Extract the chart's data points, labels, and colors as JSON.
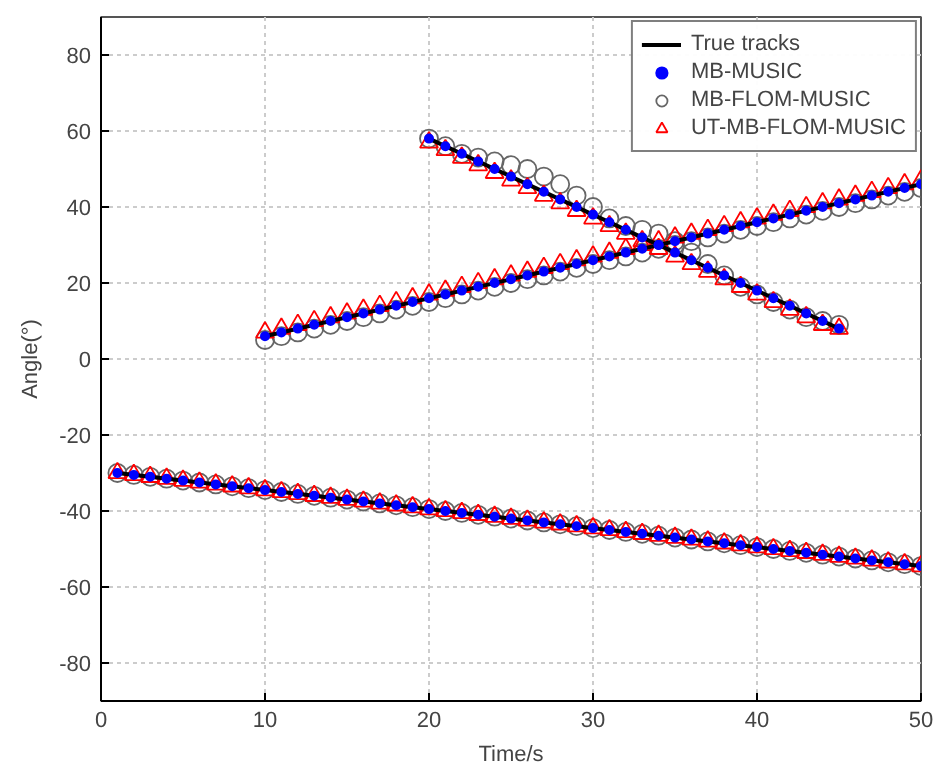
{
  "chart_data": {
    "type": "scatter",
    "xlabel": "Time/s",
    "ylabel": "Angle(°)",
    "xlim": [
      0,
      50
    ],
    "ylim": [
      -90,
      90
    ],
    "xticks": [
      0,
      10,
      20,
      30,
      40,
      50
    ],
    "yticks": [
      -80,
      -60,
      -40,
      -20,
      0,
      20,
      40,
      60,
      80
    ],
    "grid": true,
    "legend": "top right",
    "series": [
      {
        "name": "True tracks",
        "type": "line",
        "color": "#000000",
        "x": [
          1,
          50,
          null,
          10,
          50,
          null,
          20,
          45
        ],
        "values": [
          -30,
          -54.5,
          null,
          6,
          46,
          null,
          58,
          8
        ]
      },
      {
        "name": "MB-MUSIC",
        "color": "#0000ff",
        "marker": "circle",
        "x": [
          1,
          2,
          3,
          4,
          5,
          6,
          7,
          8,
          9,
          10,
          11,
          12,
          13,
          14,
          15,
          16,
          17,
          18,
          19,
          20,
          21,
          22,
          23,
          24,
          25,
          26,
          27,
          28,
          29,
          30,
          31,
          32,
          33,
          34,
          35,
          36,
          37,
          38,
          39,
          40,
          41,
          42,
          43,
          44,
          45,
          46,
          47,
          48,
          49,
          50,
          10,
          11,
          12,
          13,
          14,
          15,
          16,
          17,
          18,
          19,
          20,
          21,
          22,
          23,
          24,
          25,
          26,
          27,
          28,
          29,
          30,
          31,
          32,
          33,
          34,
          35,
          36,
          37,
          38,
          39,
          40,
          41,
          42,
          43,
          44,
          45,
          46,
          47,
          48,
          49,
          50,
          20,
          21,
          22,
          23,
          24,
          25,
          26,
          27,
          28,
          29,
          30,
          31,
          32,
          33,
          34,
          35,
          36,
          37,
          38,
          39,
          40,
          41,
          42,
          43,
          44,
          45
        ],
        "values": [
          -30,
          -30.5,
          -31,
          -31.5,
          -32,
          -32.5,
          -33,
          -33.5,
          -34,
          -34.5,
          -35,
          -35.5,
          -36,
          -36.5,
          -37,
          -37.5,
          -38,
          -38.5,
          -39,
          -39.5,
          -40,
          -40.5,
          -41,
          -41.5,
          -42,
          -42.5,
          -43,
          -43.5,
          -44,
          -44.5,
          -45,
          -45.5,
          -46,
          -46.5,
          -47,
          -47.5,
          -48,
          -48.5,
          -49,
          -49.5,
          -50,
          -50.5,
          -51,
          -51.5,
          -52,
          -52.5,
          -53,
          -53.5,
          -54,
          -54.5,
          6,
          7,
          8,
          9,
          10,
          11,
          12,
          13,
          14,
          15,
          16,
          17,
          18,
          19,
          20,
          21,
          22,
          23,
          24,
          25,
          26,
          27,
          28,
          29,
          30,
          31,
          32,
          33,
          34,
          35,
          36,
          37,
          38,
          39,
          40,
          41,
          42,
          43,
          44,
          45,
          46,
          58,
          56,
          54,
          52,
          50,
          48,
          46,
          44,
          42,
          40,
          38,
          36,
          34,
          32,
          30,
          28,
          26,
          24,
          22,
          20,
          18,
          16,
          14,
          12,
          10,
          8
        ]
      },
      {
        "name": "MB-FLOM-MUSIC",
        "color": "#666666",
        "marker": "circle",
        "x": [
          1,
          2,
          3,
          4,
          5,
          6,
          7,
          8,
          9,
          10,
          11,
          12,
          13,
          14,
          15,
          16,
          17,
          18,
          19,
          20,
          21,
          22,
          23,
          24,
          25,
          26,
          27,
          28,
          29,
          30,
          31,
          32,
          33,
          34,
          35,
          36,
          37,
          38,
          39,
          40,
          41,
          42,
          43,
          44,
          45,
          46,
          47,
          48,
          49,
          50,
          10,
          11,
          12,
          13,
          14,
          15,
          16,
          17,
          18,
          19,
          20,
          21,
          22,
          23,
          24,
          25,
          26,
          27,
          28,
          29,
          30,
          31,
          32,
          33,
          34,
          35,
          36,
          37,
          38,
          39,
          40,
          41,
          42,
          43,
          44,
          45,
          46,
          47,
          48,
          49,
          50,
          20,
          21,
          22,
          23,
          24,
          25,
          26,
          27,
          28,
          29,
          30,
          31,
          32,
          33,
          34,
          35,
          36,
          37,
          38,
          39,
          40,
          41,
          42,
          43,
          44,
          45
        ],
        "values": [
          -30,
          -30.5,
          -31,
          -31.5,
          -32,
          -32.5,
          -33,
          -33.5,
          -34,
          -34.5,
          -35,
          -35.5,
          -36,
          -36.5,
          -37,
          -37.5,
          -38,
          -38.5,
          -39,
          -39.5,
          -40,
          -40.5,
          -41,
          -41.5,
          -42,
          -42.5,
          -43,
          -43.5,
          -44,
          -44.5,
          -45,
          -45.5,
          -46,
          -46.5,
          -47,
          -47.5,
          -48,
          -48.5,
          -49,
          -49.5,
          -50,
          -50.5,
          -51,
          -51.5,
          -52,
          -52.5,
          -53,
          -53.5,
          -54,
          -54.5,
          5,
          6,
          7,
          8,
          9,
          10,
          11,
          12,
          13,
          14,
          15,
          16,
          17,
          18,
          19,
          20,
          21,
          22,
          23,
          24,
          25,
          26,
          27,
          28,
          29,
          30,
          31,
          32,
          33,
          34,
          35,
          36,
          37,
          38,
          39,
          40,
          41,
          42,
          43,
          44,
          45,
          58,
          56,
          54,
          53,
          52,
          51,
          50,
          48,
          46,
          43,
          40,
          37,
          35,
          34,
          33,
          31,
          28,
          25,
          22,
          19,
          17,
          15,
          13,
          11,
          10,
          9
        ]
      },
      {
        "name": "UT-MB-FLOM-MUSIC",
        "color": "#ff0000",
        "marker": "triangle",
        "x": [
          1,
          2,
          3,
          4,
          5,
          6,
          7,
          8,
          9,
          10,
          11,
          12,
          13,
          14,
          15,
          16,
          17,
          18,
          19,
          20,
          21,
          22,
          23,
          24,
          25,
          26,
          27,
          28,
          29,
          30,
          31,
          32,
          33,
          34,
          35,
          36,
          37,
          38,
          39,
          40,
          41,
          42,
          43,
          44,
          45,
          46,
          47,
          48,
          49,
          50,
          10,
          11,
          12,
          13,
          14,
          15,
          16,
          17,
          18,
          19,
          20,
          21,
          22,
          23,
          24,
          25,
          26,
          27,
          28,
          29,
          30,
          31,
          32,
          33,
          34,
          35,
          36,
          37,
          38,
          39,
          40,
          41,
          42,
          43,
          44,
          45,
          46,
          47,
          48,
          49,
          50,
          20,
          21,
          22,
          23,
          24,
          25,
          26,
          27,
          28,
          29,
          30,
          31,
          32,
          33,
          34,
          35,
          36,
          37,
          38,
          39,
          40,
          41,
          42,
          43,
          44,
          45
        ],
        "values": [
          -30,
          -30.5,
          -31,
          -31.5,
          -32,
          -32.5,
          -33,
          -33.5,
          -34,
          -34.5,
          -35,
          -35.5,
          -36,
          -36.5,
          -37,
          -37.5,
          -38,
          -38.5,
          -39,
          -39.5,
          -40,
          -40.5,
          -41,
          -41.5,
          -42,
          -42.5,
          -43,
          -43.5,
          -44,
          -44.5,
          -45,
          -45.5,
          -46,
          -46.5,
          -47,
          -47.5,
          -48,
          -48.5,
          -49,
          -49.5,
          -50,
          -50.5,
          -51,
          -51.5,
          -52,
          -52.5,
          -53,
          -53.5,
          -54,
          -54.5,
          7,
          8,
          9,
          10,
          11,
          12,
          13,
          14,
          15,
          16,
          17,
          18,
          19,
          20,
          21,
          22,
          23,
          24,
          25,
          26,
          27,
          28,
          29,
          30,
          31,
          32,
          33,
          34,
          35,
          36,
          37,
          38,
          39,
          40,
          41,
          42,
          43,
          44,
          45,
          46,
          47,
          57,
          55,
          53,
          51,
          49,
          47,
          45,
          43,
          41,
          39,
          37,
          35,
          33,
          31,
          29,
          27,
          25,
          23,
          21,
          19,
          17,
          15,
          13,
          11,
          9,
          8
        ]
      }
    ]
  }
}
